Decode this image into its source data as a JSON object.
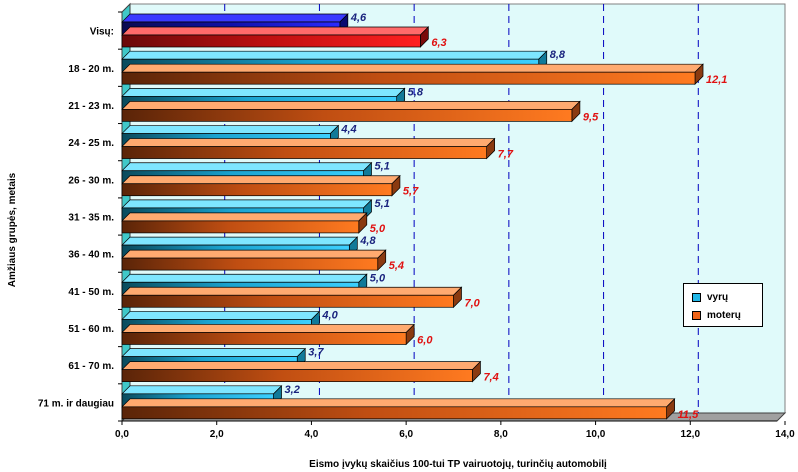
{
  "chart_data": {
    "type": "bar",
    "orientation": "horizontal",
    "categories": [
      "Visų:",
      "18 - 20 m.",
      "21 - 23 m.",
      "24 - 25 m.",
      "26 - 30 m.",
      "31 - 35 m.",
      "36 - 40 m.",
      "41 - 50 m.",
      "51 - 60 m.",
      "61 - 70 m.",
      "71 m. ir daugiau"
    ],
    "series": [
      {
        "name": "vyrų",
        "color": "#22b8e8",
        "values": [
          4.6,
          8.8,
          5.8,
          4.4,
          5.1,
          5.1,
          4.8,
          5.0,
          4.0,
          3.7,
          3.2
        ],
        "labels": [
          "4,6",
          "8,8",
          "5,8",
          "4,4",
          "5,1",
          "5,1",
          "4,8",
          "5,0",
          "4,0",
          "3,7",
          "3,2"
        ]
      },
      {
        "name": "moterų",
        "color": "#f06418",
        "values": [
          6.3,
          12.1,
          9.5,
          7.7,
          5.7,
          5.0,
          5.4,
          7.0,
          6.0,
          7.4,
          11.5
        ],
        "labels": [
          "6,3",
          "12,1",
          "9,5",
          "7,7",
          "5,7",
          "5,0",
          "5,4",
          "7,0",
          "6,0",
          "7,4",
          "11,5"
        ]
      }
    ],
    "first_row_colors": {
      "vyrų": "#1a1ae0",
      "moterų": "#f01818"
    },
    "value_label_colors": {
      "vyrų": "#1a237e",
      "moterų": "#e01010"
    },
    "xlabel": "Eismo įvykų skaičius 100-tui TP vairuotojų, turinčių automobilį",
    "ylabel": "Amžiaus grupės, metais",
    "xlim": [
      0,
      14
    ],
    "xticks": [
      "0,0",
      "2,0",
      "4,0",
      "6,0",
      "8,0",
      "10,0",
      "12,0",
      "14,0"
    ],
    "grid": "vertical dashed",
    "legend": "right",
    "plot_background": "#e0fafa"
  }
}
